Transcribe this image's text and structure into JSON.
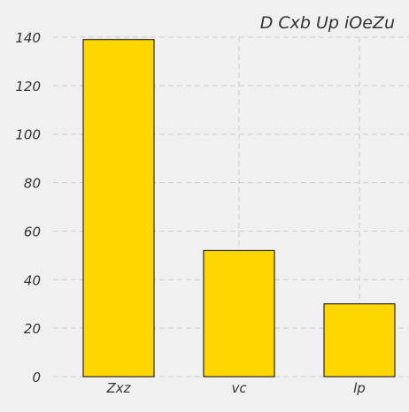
{
  "chart_data": {
    "type": "bar",
    "title": "D Cxb Up iOeZu",
    "xlabel": "",
    "ylabel": "",
    "categories": [
      "Zxz",
      "vc",
      "lp"
    ],
    "values": [
      139,
      52,
      30
    ],
    "ylim": [
      0,
      140
    ],
    "yticks": [
      0,
      20,
      40,
      60,
      80,
      100,
      120,
      140
    ],
    "grid": true,
    "bar_color": "#ffd700",
    "bar_edge_color": "#000000",
    "background_color": "#f0f0f0",
    "grid_color": "#cccccc"
  }
}
